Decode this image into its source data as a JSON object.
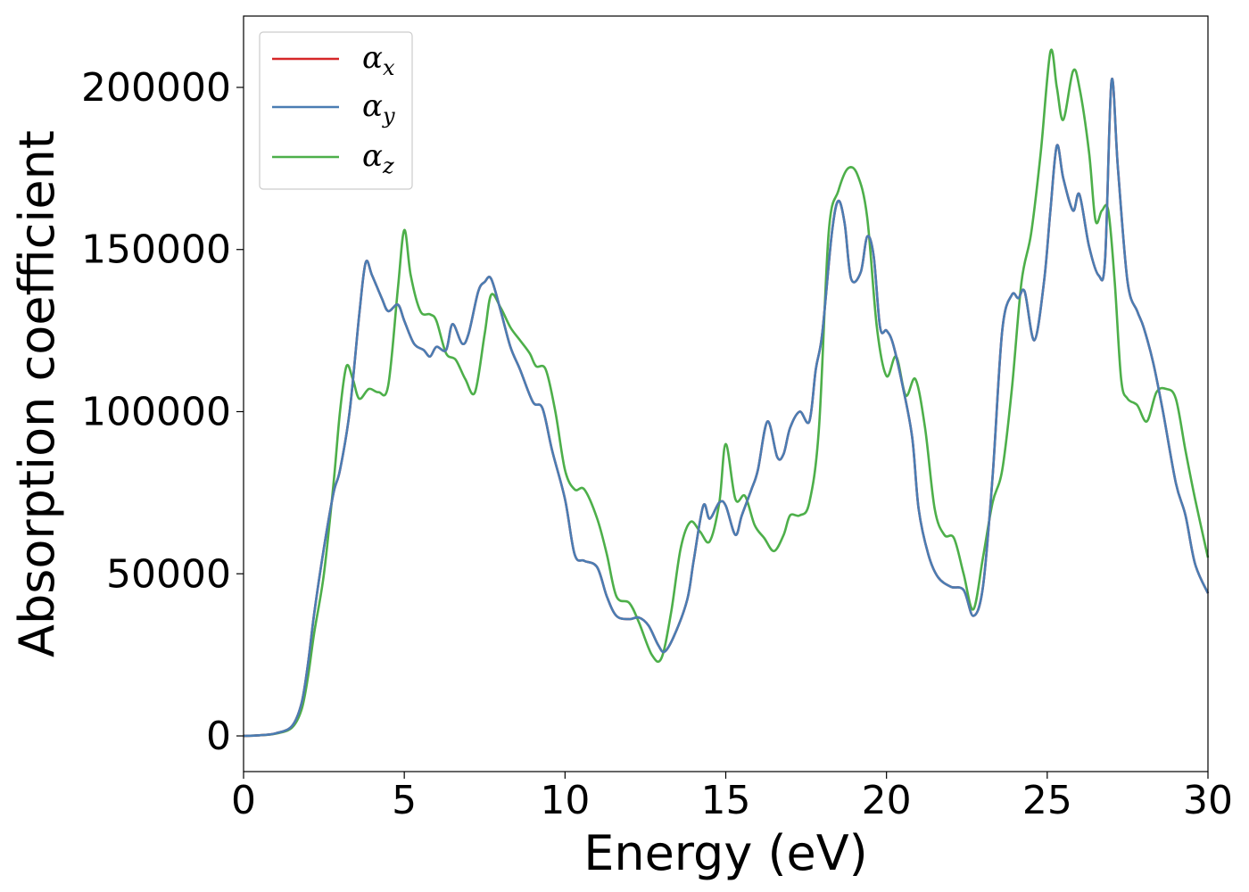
{
  "chart_data": {
    "type": "line",
    "title": "",
    "xlabel": "Energy (eV)",
    "ylabel": "Absorption coefficient",
    "xlim": [
      0,
      30
    ],
    "ylim": [
      -11000,
      222000
    ],
    "xticks": [
      0,
      5,
      10,
      15,
      20,
      25,
      30
    ],
    "yticks": [
      0,
      50000,
      100000,
      150000,
      200000
    ],
    "xtick_labels": [
      "0",
      "5",
      "10",
      "15",
      "20",
      "25",
      "30"
    ],
    "ytick_labels": [
      "0",
      "50000",
      "100000",
      "150000",
      "200000"
    ],
    "grid": false,
    "legend_position": "top-left",
    "series": [
      {
        "name": "αx",
        "label_base": "α",
        "label_sub": "x",
        "color": "#d62728",
        "x": [
          0,
          0.5,
          1.0,
          1.5,
          1.8,
          2.0,
          2.2,
          2.5,
          2.8,
          3.0,
          3.3,
          3.6,
          3.8,
          4.0,
          4.3,
          4.5,
          4.8,
          5.0,
          5.3,
          5.6,
          5.8,
          6.0,
          6.3,
          6.5,
          6.8,
          7.0,
          7.3,
          7.5,
          7.7,
          8.0,
          8.3,
          8.6,
          9.0,
          9.3,
          9.6,
          10.0,
          10.3,
          10.6,
          11.0,
          11.3,
          11.6,
          12.0,
          12.3,
          12.6,
          12.9,
          13.1,
          13.4,
          13.8,
          14.0,
          14.3,
          14.5,
          14.8,
          15.0,
          15.3,
          15.5,
          15.8,
          16.0,
          16.3,
          16.6,
          16.8,
          17.0,
          17.3,
          17.6,
          17.8,
          18.0,
          18.3,
          18.5,
          18.7,
          18.9,
          19.2,
          19.4,
          19.6,
          19.8,
          20.0,
          20.2,
          20.5,
          20.8,
          21.0,
          21.3,
          21.6,
          22.0,
          22.4,
          22.7,
          23.0,
          23.3,
          23.6,
          23.9,
          24.1,
          24.3,
          24.6,
          24.9,
          25.1,
          25.3,
          25.5,
          25.8,
          26.0,
          26.3,
          26.6,
          26.8,
          27.0,
          27.2,
          27.5,
          27.8,
          28.0,
          28.3,
          28.6,
          29.0,
          29.3,
          29.6,
          30.0
        ],
        "values": [
          0,
          200,
          800,
          3000,
          10000,
          22000,
          38000,
          58000,
          75000,
          82000,
          100000,
          130000,
          146000,
          142000,
          135000,
          131000,
          133000,
          128000,
          121000,
          119000,
          117000,
          120000,
          119000,
          127000,
          121000,
          124000,
          137000,
          140000,
          141000,
          131000,
          120000,
          113000,
          103000,
          101000,
          88000,
          73000,
          56000,
          54000,
          52000,
          43000,
          37000,
          36000,
          36500,
          34000,
          28000,
          26000,
          31000,
          42000,
          54000,
          71000,
          67000,
          72000,
          71000,
          62000,
          68000,
          76000,
          82000,
          97000,
          86000,
          87000,
          95000,
          100000,
          97000,
          113000,
          124000,
          155000,
          165000,
          158000,
          141000,
          143000,
          154000,
          148000,
          126000,
          125000,
          121000,
          108000,
          92000,
          70000,
          56000,
          49000,
          46000,
          45000,
          37000,
          46000,
          80000,
          125000,
          136000,
          135000,
          137000,
          122000,
          140000,
          162000,
          182000,
          172000,
          162000,
          167000,
          151000,
          142000,
          147000,
          202000,
          175000,
          140000,
          131000,
          126000,
          115000,
          100000,
          78000,
          68000,
          53000,
          44000
        ]
      },
      {
        "name": "αy",
        "label_base": "α",
        "label_sub": "y",
        "color": "#4a7db3",
        "x": [
          0,
          0.5,
          1.0,
          1.5,
          1.8,
          2.0,
          2.2,
          2.5,
          2.8,
          3.0,
          3.3,
          3.6,
          3.8,
          4.0,
          4.3,
          4.5,
          4.8,
          5.0,
          5.3,
          5.6,
          5.8,
          6.0,
          6.3,
          6.5,
          6.8,
          7.0,
          7.3,
          7.5,
          7.7,
          8.0,
          8.3,
          8.6,
          9.0,
          9.3,
          9.6,
          10.0,
          10.3,
          10.6,
          11.0,
          11.3,
          11.6,
          12.0,
          12.3,
          12.6,
          12.9,
          13.1,
          13.4,
          13.8,
          14.0,
          14.3,
          14.5,
          14.8,
          15.0,
          15.3,
          15.5,
          15.8,
          16.0,
          16.3,
          16.6,
          16.8,
          17.0,
          17.3,
          17.6,
          17.8,
          18.0,
          18.3,
          18.5,
          18.7,
          18.9,
          19.2,
          19.4,
          19.6,
          19.8,
          20.0,
          20.2,
          20.5,
          20.8,
          21.0,
          21.3,
          21.6,
          22.0,
          22.4,
          22.7,
          23.0,
          23.3,
          23.6,
          23.9,
          24.1,
          24.3,
          24.6,
          24.9,
          25.1,
          25.3,
          25.5,
          25.8,
          26.0,
          26.3,
          26.6,
          26.8,
          27.0,
          27.2,
          27.5,
          27.8,
          28.0,
          28.3,
          28.6,
          29.0,
          29.3,
          29.6,
          30.0
        ],
        "values": [
          0,
          200,
          800,
          3000,
          10000,
          22000,
          38000,
          58000,
          75000,
          82000,
          100000,
          130000,
          146000,
          142000,
          135000,
          131000,
          133000,
          128000,
          121000,
          119000,
          117000,
          120000,
          119000,
          127000,
          121000,
          124000,
          137000,
          140000,
          141000,
          131000,
          120000,
          113000,
          103000,
          101000,
          88000,
          73000,
          56000,
          54000,
          52000,
          43000,
          37000,
          36000,
          36500,
          34000,
          28000,
          26000,
          31000,
          42000,
          54000,
          71000,
          67000,
          72000,
          71000,
          62000,
          68000,
          76000,
          82000,
          97000,
          86000,
          87000,
          95000,
          100000,
          97000,
          113000,
          124000,
          155000,
          165000,
          158000,
          141000,
          143000,
          154000,
          148000,
          126000,
          125000,
          121000,
          108000,
          92000,
          70000,
          56000,
          49000,
          46000,
          45000,
          37000,
          46000,
          80000,
          125000,
          136000,
          135000,
          137000,
          122000,
          140000,
          162000,
          182000,
          172000,
          162000,
          167000,
          151000,
          142000,
          147000,
          202000,
          175000,
          140000,
          131000,
          126000,
          115000,
          100000,
          78000,
          68000,
          53000,
          44000
        ]
      },
      {
        "name": "αz",
        "label_base": "α",
        "label_sub": "z",
        "color": "#4daf4a",
        "x": [
          0,
          0.5,
          1.0,
          1.5,
          1.8,
          2.0,
          2.2,
          2.5,
          2.8,
          3.0,
          3.2,
          3.4,
          3.6,
          3.9,
          4.2,
          4.5,
          4.8,
          5.0,
          5.2,
          5.5,
          5.8,
          6.0,
          6.3,
          6.6,
          6.9,
          7.2,
          7.5,
          7.7,
          8.0,
          8.3,
          8.6,
          8.9,
          9.1,
          9.4,
          9.7,
          10.0,
          10.3,
          10.6,
          11.0,
          11.3,
          11.6,
          12.0,
          12.3,
          12.7,
          13.0,
          13.3,
          13.6,
          13.9,
          14.2,
          14.5,
          14.8,
          15.0,
          15.3,
          15.6,
          15.9,
          16.2,
          16.5,
          16.8,
          17.0,
          17.3,
          17.6,
          17.9,
          18.2,
          18.5,
          18.8,
          19.1,
          19.4,
          19.7,
          20.0,
          20.3,
          20.6,
          20.9,
          21.2,
          21.5,
          21.8,
          22.1,
          22.4,
          22.7,
          23.0,
          23.3,
          23.6,
          23.9,
          24.2,
          24.5,
          24.8,
          25.1,
          25.3,
          25.5,
          25.8,
          26.0,
          26.3,
          26.5,
          26.7,
          26.9,
          27.1,
          27.3,
          27.5,
          27.8,
          28.1,
          28.4,
          28.7,
          29.0,
          29.3,
          29.6,
          30.0
        ],
        "values": [
          0,
          200,
          700,
          2500,
          8000,
          18000,
          32000,
          50000,
          78000,
          100000,
          114000,
          110000,
          104000,
          107000,
          106000,
          108000,
          138000,
          156000,
          142000,
          131000,
          130000,
          128000,
          118000,
          116000,
          110000,
          106000,
          124000,
          136000,
          132000,
          126000,
          122000,
          118000,
          114000,
          113000,
          100000,
          82000,
          76000,
          76000,
          67000,
          56000,
          43000,
          41000,
          35000,
          25000,
          24000,
          38000,
          58000,
          66000,
          63000,
          60000,
          72000,
          90000,
          73000,
          74000,
          65000,
          61000,
          57000,
          62000,
          68000,
          68000,
          72000,
          95000,
          155000,
          168000,
          175000,
          173000,
          160000,
          126000,
          111000,
          117000,
          105000,
          110000,
          95000,
          70000,
          62000,
          61000,
          50000,
          39000,
          55000,
          72000,
          82000,
          107000,
          140000,
          155000,
          180000,
          211000,
          200000,
          190000,
          205000,
          200000,
          180000,
          159000,
          162000,
          162000,
          140000,
          110000,
          104000,
          102000,
          97000,
          106000,
          107000,
          104000,
          88000,
          73000,
          55000
        ]
      }
    ]
  }
}
